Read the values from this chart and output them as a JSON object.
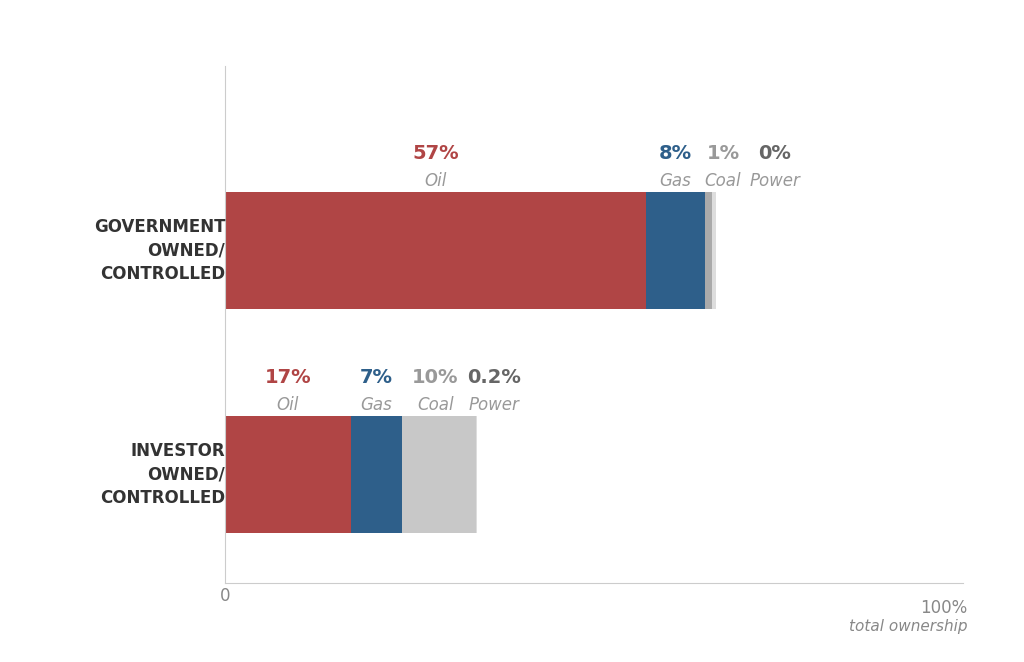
{
  "background_color": "#ffffff",
  "segments": {
    "gov": [
      {
        "label": "Oil",
        "value": 57,
        "color": "#b04545"
      },
      {
        "label": "Gas",
        "value": 8,
        "color": "#2e5f8a"
      },
      {
        "label": "Coal",
        "value": 1,
        "color": "#aaaaaa"
      },
      {
        "label": "Power",
        "value": 0.5,
        "color": "#dddddd"
      }
    ],
    "inv": [
      {
        "label": "Oil",
        "value": 17,
        "color": "#b04545"
      },
      {
        "label": "Gas",
        "value": 7,
        "color": "#2e5f8a"
      },
      {
        "label": "Coal",
        "value": 10,
        "color": "#c8c8c8"
      },
      {
        "label": "Power",
        "value": 0.2,
        "color": "#dddddd"
      }
    ]
  },
  "gov_annots": [
    {
      "pct": "57%",
      "lbl": "Oil",
      "x": 28.5,
      "pct_color": "#b04545",
      "lbl_color": "#999999"
    },
    {
      "pct": "8%",
      "lbl": "Gas",
      "x": 61.0,
      "pct_color": "#2e5f8a",
      "lbl_color": "#999999"
    },
    {
      "pct": "1%",
      "lbl": "Coal",
      "x": 67.5,
      "pct_color": "#999999",
      "lbl_color": "#999999"
    },
    {
      "pct": "0%",
      "lbl": "Power",
      "x": 74.5,
      "pct_color": "#666666",
      "lbl_color": "#999999"
    }
  ],
  "inv_annots": [
    {
      "pct": "17%",
      "lbl": "Oil",
      "x": 8.5,
      "pct_color": "#b04545",
      "lbl_color": "#999999"
    },
    {
      "pct": "7%",
      "lbl": "Gas",
      "x": 20.5,
      "pct_color": "#2e5f8a",
      "lbl_color": "#999999"
    },
    {
      "pct": "10%",
      "lbl": "Coal",
      "x": 28.5,
      "pct_color": "#999999",
      "lbl_color": "#999999"
    },
    {
      "pct": "0.2%",
      "lbl": "Power",
      "x": 36.5,
      "pct_color": "#666666",
      "lbl_color": "#999999"
    }
  ],
  "gov_label": "GOVERNMENT\nOWNED/\nCONTROLLED",
  "inv_label": "INVESTOR\nOWNED/\nCONTROLLED",
  "axis_color": "#cccccc",
  "text_color": "#888888",
  "pct_fontsize": 14,
  "lbl_fontsize": 12,
  "ytick_fontsize": 12
}
